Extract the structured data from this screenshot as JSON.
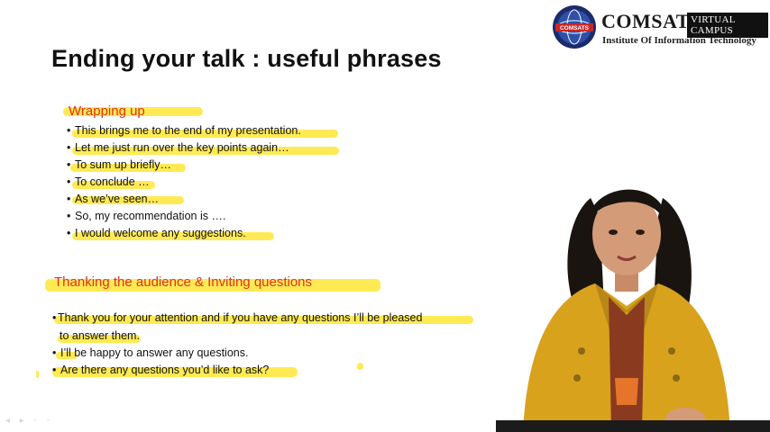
{
  "logo": {
    "seal_text": "COMSATS",
    "brand": "COMSATS",
    "tagline": "VIRTUAL CAMPUS",
    "institute": "Institute Of Information Technology"
  },
  "slide": {
    "title": "Ending your talk : useful phrases",
    "section1": {
      "heading": "Wrapping up",
      "items": [
        "This brings me to the end of my presentation.",
        "Let me just run over the key points again…",
        "To sum up briefly…",
        "To conclude …",
        "As we’ve seen…",
        "So, my recommendation is ….",
        "I would welcome any suggestions."
      ]
    },
    "section2": {
      "heading": "Thanking the audience & Inviting questions",
      "item1_line1": "Thank you for your attention and if you have any questions I’ll be pleased",
      "item1_line2": "to answer them.",
      "item2": "I’ll be happy to answer any questions.",
      "item3": "Are there any questions you’d like to ask?"
    }
  },
  "colors": {
    "highlight": "#ffe94a",
    "heading": "#e0301e",
    "jacket": "#d9a21d"
  }
}
